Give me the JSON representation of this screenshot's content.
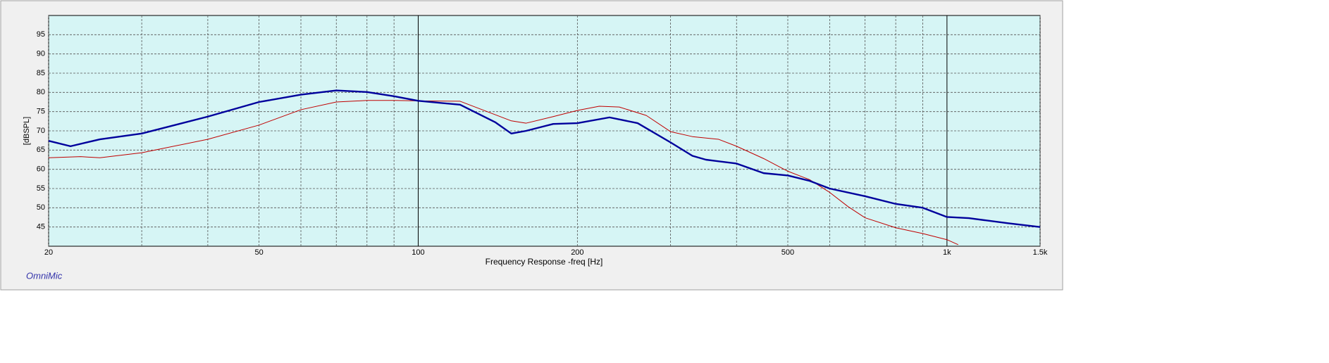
{
  "chart_data": {
    "type": "line",
    "x_label": "Frequency Response -freq [Hz]",
    "y_label": "[dBSPL]",
    "watermark": "OmniMic",
    "log_x": true,
    "grid": true,
    "xlim": [
      20,
      1500
    ],
    "ylim": [
      40,
      100
    ],
    "xticks": [
      20,
      50,
      100,
      200,
      500,
      {
        "value": 1000,
        "label": "1k"
      },
      {
        "value": 1500,
        "label": "1.5k"
      }
    ],
    "x_minor_ticks": [
      30,
      40,
      60,
      70,
      80,
      90,
      300,
      400,
      600,
      700,
      800,
      900
    ],
    "yticks": [
      45,
      50,
      55,
      60,
      65,
      70,
      75,
      80,
      85,
      90,
      95
    ],
    "series": [
      {
        "color": "#c00000",
        "width": 1,
        "x": [
          20,
          23,
          25,
          30,
          40,
          50,
          60,
          70,
          80,
          90,
          100,
          120,
          150,
          160,
          180,
          200,
          220,
          240,
          270,
          300,
          330,
          370,
          400,
          450,
          500,
          550,
          600,
          650,
          700,
          800,
          900,
          1000,
          1050
        ],
        "values": [
          63,
          63.3,
          63,
          64.3,
          67.8,
          71.5,
          75.5,
          77.5,
          77.9,
          77.9,
          77.8,
          77.7,
          72.6,
          72,
          73.7,
          75.3,
          76.4,
          76.2,
          74,
          69.8,
          68.5,
          67.8,
          66,
          62.8,
          59.5,
          57.3,
          54,
          50.3,
          47.4,
          44.8,
          43.3,
          41.7,
          40.4
        ]
      },
      {
        "color": "#00009c",
        "width": 2.4,
        "x": [
          20,
          22,
          25,
          30,
          40,
          50,
          60,
          70,
          80,
          90,
          100,
          120,
          140,
          150,
          160,
          180,
          200,
          230,
          260,
          300,
          330,
          350,
          400,
          450,
          500,
          550,
          600,
          700,
          800,
          900,
          1000,
          1100,
          1300,
          1500
        ],
        "values": [
          67.4,
          66,
          67.8,
          69.3,
          73.7,
          77.5,
          79.4,
          80.5,
          80.1,
          79,
          77.8,
          76.8,
          72.2,
          69.3,
          70,
          71.8,
          72,
          73.5,
          72,
          67,
          63.5,
          62.5,
          61.5,
          59,
          58.4,
          57,
          55,
          53,
          51,
          50,
          47.6,
          47.3,
          46,
          45
        ]
      }
    ]
  }
}
